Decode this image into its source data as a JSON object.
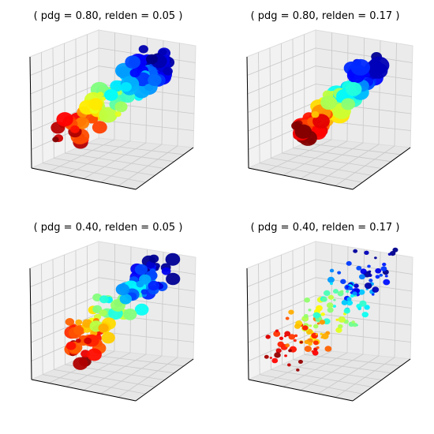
{
  "panels": [
    {
      "title": "( pdg = 0.80, relden = 0.05 )"
    },
    {
      "title": "( pdg = 0.80, relden = 0.17 )"
    },
    {
      "title": "( pdg = 0.40, relden = 0.05 )"
    },
    {
      "title": "( pdg = 0.40, relden = 0.17 )"
    }
  ]
}
